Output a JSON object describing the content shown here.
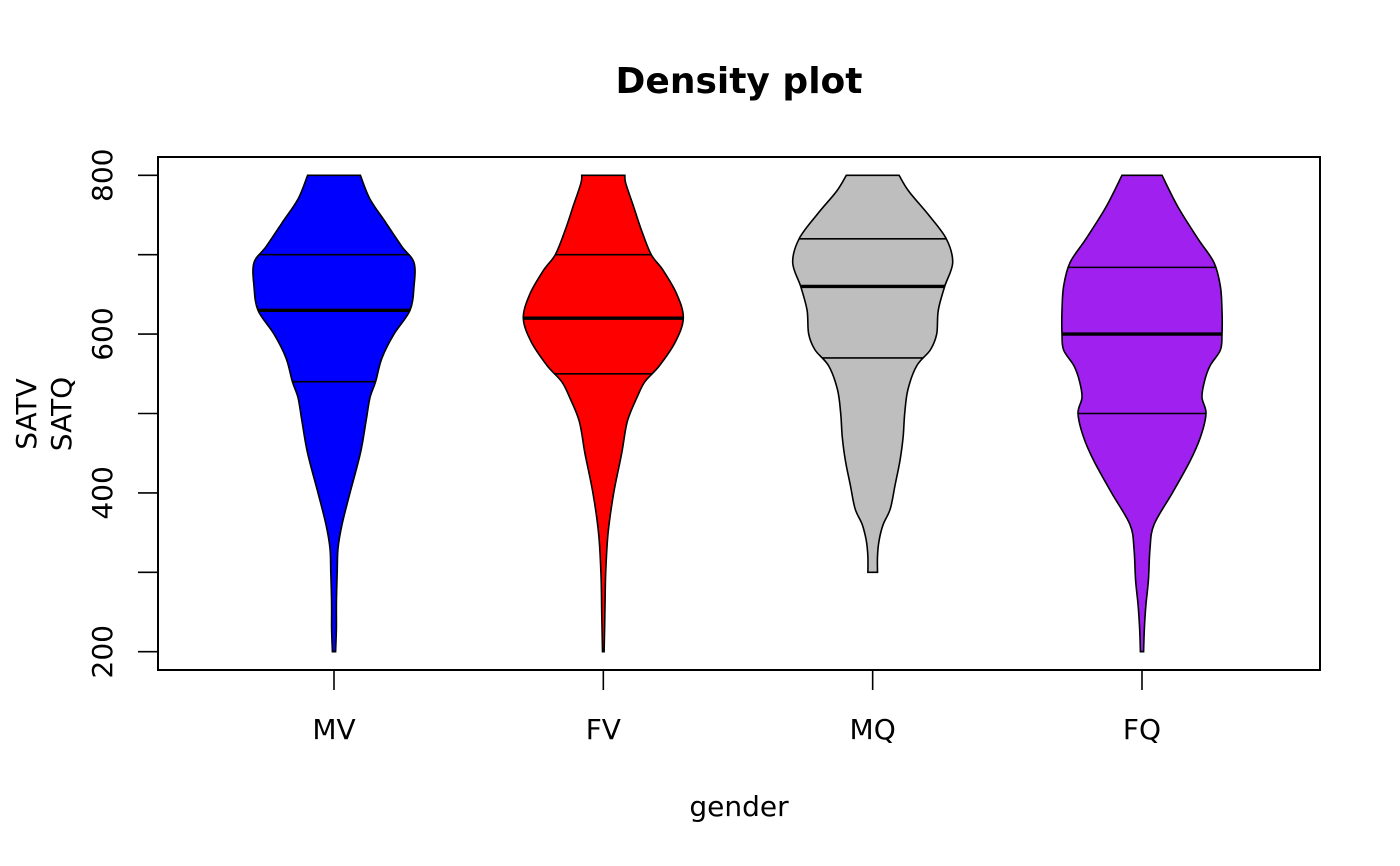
{
  "chart_data": {
    "type": "violin",
    "title": "Density plot",
    "xlabel": "gender",
    "ylabel_lines": [
      "SATV",
      "SATQ"
    ],
    "ylim": [
      177,
      823
    ],
    "yticks": [
      200,
      300,
      400,
      500,
      600,
      700,
      800
    ],
    "ytick_labels": [
      "200",
      "",
      "400",
      "",
      "600",
      "",
      "800"
    ],
    "grid": false,
    "legend": "none",
    "categories": [
      "MV",
      "FV",
      "MQ",
      "FQ"
    ],
    "series": [
      {
        "category": "MV",
        "color": "#0000FF",
        "min": 200,
        "max": 800,
        "q1": 540,
        "median": 630,
        "q3": 700,
        "density_profile": [
          [
            200,
            0.02
          ],
          [
            230,
            0.03
          ],
          [
            260,
            0.03
          ],
          [
            300,
            0.04
          ],
          [
            330,
            0.05
          ],
          [
            360,
            0.1
          ],
          [
            400,
            0.2
          ],
          [
            450,
            0.33
          ],
          [
            490,
            0.4
          ],
          [
            520,
            0.45
          ],
          [
            540,
            0.52
          ],
          [
            570,
            0.6
          ],
          [
            600,
            0.75
          ],
          [
            630,
            0.95
          ],
          [
            660,
            1.0
          ],
          [
            690,
            1.0
          ],
          [
            710,
            0.85
          ],
          [
            740,
            0.65
          ],
          [
            770,
            0.45
          ],
          [
            800,
            0.33
          ]
        ]
      },
      {
        "category": "FV",
        "color": "#FF0000",
        "min": 200,
        "max": 800,
        "q1": 550,
        "median": 620,
        "q3": 700,
        "density_profile": [
          [
            200,
            0.01
          ],
          [
            250,
            0.02
          ],
          [
            300,
            0.03
          ],
          [
            350,
            0.06
          ],
          [
            400,
            0.13
          ],
          [
            450,
            0.23
          ],
          [
            490,
            0.3
          ],
          [
            520,
            0.42
          ],
          [
            540,
            0.52
          ],
          [
            560,
            0.7
          ],
          [
            590,
            0.9
          ],
          [
            620,
            1.0
          ],
          [
            650,
            0.92
          ],
          [
            680,
            0.75
          ],
          [
            700,
            0.6
          ],
          [
            730,
            0.48
          ],
          [
            760,
            0.38
          ],
          [
            790,
            0.28
          ],
          [
            800,
            0.27
          ]
        ]
      },
      {
        "category": "MQ",
        "color": "#BEBEBE",
        "min": 300,
        "max": 800,
        "q1": 570,
        "median": 660,
        "q3": 720,
        "density_profile": [
          [
            300,
            0.06
          ],
          [
            320,
            0.06
          ],
          [
            340,
            0.08
          ],
          [
            360,
            0.13
          ],
          [
            380,
            0.22
          ],
          [
            410,
            0.28
          ],
          [
            440,
            0.34
          ],
          [
            470,
            0.38
          ],
          [
            500,
            0.4
          ],
          [
            530,
            0.44
          ],
          [
            560,
            0.55
          ],
          [
            580,
            0.72
          ],
          [
            600,
            0.8
          ],
          [
            630,
            0.82
          ],
          [
            660,
            0.9
          ],
          [
            690,
            1.0
          ],
          [
            720,
            0.92
          ],
          [
            750,
            0.7
          ],
          [
            780,
            0.45
          ],
          [
            800,
            0.33
          ]
        ]
      },
      {
        "category": "FQ",
        "color": "#A020F0",
        "min": 200,
        "max": 800,
        "q1": 500,
        "median": 600,
        "q3": 684,
        "density_profile": [
          [
            200,
            0.02
          ],
          [
            230,
            0.03
          ],
          [
            260,
            0.05
          ],
          [
            290,
            0.08
          ],
          [
            330,
            0.1
          ],
          [
            360,
            0.15
          ],
          [
            400,
            0.38
          ],
          [
            440,
            0.6
          ],
          [
            470,
            0.73
          ],
          [
            500,
            0.8
          ],
          [
            520,
            0.75
          ],
          [
            540,
            0.78
          ],
          [
            560,
            0.85
          ],
          [
            580,
            0.98
          ],
          [
            600,
            1.0
          ],
          [
            630,
            1.0
          ],
          [
            660,
            0.98
          ],
          [
            690,
            0.9
          ],
          [
            720,
            0.7
          ],
          [
            760,
            0.45
          ],
          [
            800,
            0.25
          ]
        ]
      }
    ]
  }
}
